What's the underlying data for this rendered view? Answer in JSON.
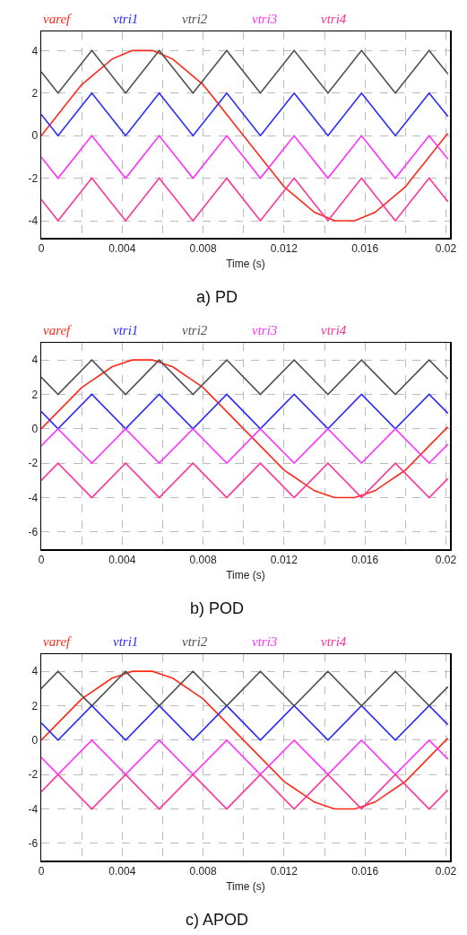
{
  "chart_data": [
    {
      "type": "line",
      "xlabel": "Time (s)",
      "annotations": [
        "a) PD"
      ],
      "legend": "top",
      "grid": true,
      "xlim": [
        0,
        0.0202
      ],
      "ylim": [
        -4.8,
        4.9
      ],
      "xticks": [
        0,
        {
          "value": 0.002,
          "label": null
        },
        0.004,
        {
          "value": 0.006,
          "label": null
        },
        0.008,
        {
          "value": 0.01,
          "label": null
        },
        0.012,
        {
          "value": 0.014,
          "label": null
        },
        0.016,
        {
          "value": 0.018,
          "label": null
        },
        0.02
      ],
      "yticks": [
        -4,
        -2,
        0,
        2,
        4
      ],
      "series": [
        {
          "name": "varef",
          "color": "#ff2a1a",
          "x": [
            0,
            0.0005,
            0.001,
            0.0015,
            0.002,
            0.0025,
            0.003,
            0.0035,
            0.004,
            0.0045,
            0.005,
            0.0055,
            0.006,
            0.0065,
            0.007,
            0.0075,
            0.008,
            0.0085,
            0.009,
            0.0095,
            0.01,
            0.0105,
            0.011,
            0.0115,
            0.012,
            0.0125,
            0.013,
            0.0135,
            0.014,
            0.0145,
            0.015,
            0.0155,
            0.016,
            0.0165,
            0.017,
            0.0175,
            0.018,
            0.0185,
            0.019,
            0.0195,
            0.02,
            0.0201
          ],
          "values": [
            0,
            0.6,
            1.2,
            1.8,
            2.4,
            2.8,
            3.2,
            3.6,
            3.8,
            4,
            4,
            4,
            3.8,
            3.6,
            3.2,
            2.8,
            2.4,
            1.8,
            1.2,
            0.6,
            0,
            -0.6,
            -1.2,
            -1.8,
            -2.4,
            -2.8,
            -3.2,
            -3.6,
            -3.8,
            -4,
            -4,
            -4,
            -3.8,
            -3.6,
            -3.2,
            -2.8,
            -2.4,
            -1.8,
            -1.2,
            -0.6,
            0,
            0.1
          ]
        },
        {
          "name": "vtri1",
          "color": "#2a2aff",
          "x": [
            0,
            0.00083,
            0.0025,
            0.00417,
            0.00583,
            0.0075,
            0.00917,
            0.01083,
            0.0125,
            0.01417,
            0.01583,
            0.0175,
            0.01917,
            0.0201
          ],
          "values": [
            1,
            0,
            2,
            0,
            2,
            0,
            2,
            0,
            2,
            0,
            2,
            0,
            2,
            0.9
          ]
        },
        {
          "name": "vtri2",
          "color": "#505050",
          "x": [
            0,
            0.00083,
            0.0025,
            0.00417,
            0.00583,
            0.0075,
            0.00917,
            0.01083,
            0.0125,
            0.01417,
            0.01583,
            0.0175,
            0.01917,
            0.0201
          ],
          "values": [
            3,
            2,
            4,
            2,
            4,
            2,
            4,
            2,
            4,
            2,
            4,
            2,
            4,
            2.9
          ]
        },
        {
          "name": "vtri3",
          "color": "#ff33ff",
          "x": [
            0,
            0.00083,
            0.0025,
            0.00417,
            0.00583,
            0.0075,
            0.00917,
            0.01083,
            0.0125,
            0.01417,
            0.01583,
            0.0175,
            0.01917,
            0.0201
          ],
          "values": [
            -1,
            -2,
            0,
            -2,
            0,
            -2,
            0,
            -2,
            0,
            -2,
            0,
            -2,
            0,
            -1.1
          ]
        },
        {
          "name": "vtri4",
          "color": "#ff3399",
          "x": [
            0,
            0.00083,
            0.0025,
            0.00417,
            0.00583,
            0.0075,
            0.00917,
            0.01083,
            0.0125,
            0.01417,
            0.01583,
            0.0175,
            0.01917,
            0.0201
          ],
          "values": [
            -3,
            -4,
            -2,
            -4,
            -2,
            -4,
            -2,
            -4,
            -2,
            -4,
            -2,
            -4,
            -2,
            -3.1
          ]
        }
      ]
    },
    {
      "type": "line",
      "xlabel": "Time (s)",
      "annotations": [
        "b) POD"
      ],
      "legend": "top",
      "grid": true,
      "xlim": [
        0,
        0.0202
      ],
      "ylim": [
        -7,
        5
      ],
      "xticks": [
        0,
        {
          "value": 0.002,
          "label": null
        },
        0.004,
        {
          "value": 0.006,
          "label": null
        },
        0.008,
        {
          "value": 0.01,
          "label": null
        },
        0.012,
        {
          "value": 0.014,
          "label": null
        },
        0.016,
        {
          "value": 0.018,
          "label": null
        },
        0.02
      ],
      "yticks": [
        -6,
        -4,
        -2,
        0,
        2,
        4
      ],
      "series": [
        {
          "name": "varef",
          "color": "#ff2a1a",
          "x": [
            0,
            0.0005,
            0.001,
            0.0015,
            0.002,
            0.0025,
            0.003,
            0.0035,
            0.004,
            0.0045,
            0.005,
            0.0055,
            0.006,
            0.0065,
            0.007,
            0.0075,
            0.008,
            0.0085,
            0.009,
            0.0095,
            0.01,
            0.0105,
            0.011,
            0.0115,
            0.012,
            0.0125,
            0.013,
            0.0135,
            0.014,
            0.0145,
            0.015,
            0.0155,
            0.016,
            0.0165,
            0.017,
            0.0175,
            0.018,
            0.0185,
            0.019,
            0.0195,
            0.02,
            0.0201
          ],
          "values": [
            0,
            0.6,
            1.2,
            1.8,
            2.4,
            2.8,
            3.2,
            3.6,
            3.8,
            4,
            4,
            4,
            3.8,
            3.6,
            3.2,
            2.8,
            2.4,
            1.8,
            1.2,
            0.6,
            0,
            -0.6,
            -1.2,
            -1.8,
            -2.4,
            -2.8,
            -3.2,
            -3.6,
            -3.8,
            -4,
            -4,
            -4,
            -3.8,
            -3.6,
            -3.2,
            -2.8,
            -2.4,
            -1.8,
            -1.2,
            -0.6,
            0,
            0.1
          ]
        },
        {
          "name": "vtri1",
          "color": "#2a2aff",
          "x": [
            0,
            0.00083,
            0.0025,
            0.00417,
            0.00583,
            0.0075,
            0.00917,
            0.01083,
            0.0125,
            0.01417,
            0.01583,
            0.0175,
            0.01917,
            0.0201
          ],
          "values": [
            1,
            0,
            2,
            0,
            2,
            0,
            2,
            0,
            2,
            0,
            2,
            0,
            2,
            0.9
          ]
        },
        {
          "name": "vtri2",
          "color": "#505050",
          "x": [
            0,
            0.00083,
            0.0025,
            0.00417,
            0.00583,
            0.0075,
            0.00917,
            0.01083,
            0.0125,
            0.01417,
            0.01583,
            0.0175,
            0.01917,
            0.0201
          ],
          "values": [
            3,
            2,
            4,
            2,
            4,
            2,
            4,
            2,
            4,
            2,
            4,
            2,
            4,
            2.9
          ]
        },
        {
          "name": "vtri3",
          "color": "#ff33ff",
          "x": [
            0,
            0.00083,
            0.0025,
            0.00417,
            0.00583,
            0.0075,
            0.00917,
            0.01083,
            0.0125,
            0.01417,
            0.01583,
            0.0175,
            0.01917,
            0.0201
          ],
          "values": [
            -1,
            0,
            -2,
            0,
            -2,
            0,
            -2,
            0,
            -2,
            0,
            -2,
            0,
            -2,
            -0.9
          ]
        },
        {
          "name": "vtri4",
          "color": "#ff3399",
          "x": [
            0,
            0.00083,
            0.0025,
            0.00417,
            0.00583,
            0.0075,
            0.00917,
            0.01083,
            0.0125,
            0.01417,
            0.01583,
            0.0175,
            0.01917,
            0.0201
          ],
          "values": [
            -3,
            -2,
            -4,
            -2,
            -4,
            -2,
            -4,
            -2,
            -4,
            -2,
            -4,
            -2,
            -4,
            -2.9
          ]
        }
      ]
    },
    {
      "type": "line",
      "xlabel": "Time (s)",
      "annotations": [
        "c) APOD"
      ],
      "legend": "top",
      "grid": true,
      "xlim": [
        0,
        0.0202
      ],
      "ylim": [
        -7,
        5
      ],
      "xticks": [
        0,
        {
          "value": 0.002,
          "label": null
        },
        0.004,
        {
          "value": 0.006,
          "label": null
        },
        0.008,
        {
          "value": 0.01,
          "label": null
        },
        0.012,
        {
          "value": 0.014,
          "label": null
        },
        0.016,
        {
          "value": 0.018,
          "label": null
        },
        0.02
      ],
      "yticks": [
        -6,
        -4,
        -2,
        0,
        2,
        4
      ],
      "series": [
        {
          "name": "varef",
          "color": "#ff2a1a",
          "x": [
            0,
            0.0005,
            0.001,
            0.0015,
            0.002,
            0.0025,
            0.003,
            0.0035,
            0.004,
            0.0045,
            0.005,
            0.0055,
            0.006,
            0.0065,
            0.007,
            0.0075,
            0.008,
            0.0085,
            0.009,
            0.0095,
            0.01,
            0.0105,
            0.011,
            0.0115,
            0.012,
            0.0125,
            0.013,
            0.0135,
            0.014,
            0.0145,
            0.015,
            0.0155,
            0.016,
            0.0165,
            0.017,
            0.0175,
            0.018,
            0.0185,
            0.019,
            0.0195,
            0.02,
            0.0201
          ],
          "values": [
            0,
            0.6,
            1.2,
            1.8,
            2.4,
            2.8,
            3.2,
            3.6,
            3.8,
            4,
            4,
            4,
            3.8,
            3.6,
            3.2,
            2.8,
            2.4,
            1.8,
            1.2,
            0.6,
            0,
            -0.6,
            -1.2,
            -1.8,
            -2.4,
            -2.8,
            -3.2,
            -3.6,
            -3.8,
            -4,
            -4,
            -4,
            -3.8,
            -3.6,
            -3.2,
            -2.8,
            -2.4,
            -1.8,
            -1.2,
            -0.6,
            0,
            0.1
          ]
        },
        {
          "name": "vtri1",
          "color": "#2a2aff",
          "x": [
            0,
            0.00083,
            0.0025,
            0.00417,
            0.00583,
            0.0075,
            0.00917,
            0.01083,
            0.0125,
            0.01417,
            0.01583,
            0.0175,
            0.01917,
            0.0201
          ],
          "values": [
            1,
            0,
            2,
            0,
            2,
            0,
            2,
            0,
            2,
            0,
            2,
            0,
            2,
            0.9
          ]
        },
        {
          "name": "vtri2",
          "color": "#505050",
          "x": [
            0,
            0.00083,
            0.0025,
            0.00417,
            0.00583,
            0.0075,
            0.00917,
            0.01083,
            0.0125,
            0.01417,
            0.01583,
            0.0175,
            0.01917,
            0.0201
          ],
          "values": [
            3,
            4,
            2,
            4,
            2,
            4,
            2,
            4,
            2,
            4,
            2,
            4,
            2,
            3.1
          ]
        },
        {
          "name": "vtri3",
          "color": "#ff33ff",
          "x": [
            0,
            0.00083,
            0.0025,
            0.00417,
            0.00583,
            0.0075,
            0.00917,
            0.01083,
            0.0125,
            0.01417,
            0.01583,
            0.0175,
            0.01917,
            0.0201
          ],
          "values": [
            -1,
            -2,
            0,
            -2,
            0,
            -2,
            0,
            -2,
            0,
            -2,
            0,
            -2,
            0,
            -1.1
          ]
        },
        {
          "name": "vtri4",
          "color": "#ff3399",
          "x": [
            0,
            0.00083,
            0.0025,
            0.00417,
            0.00583,
            0.0075,
            0.00917,
            0.01083,
            0.0125,
            0.01417,
            0.01583,
            0.0175,
            0.01917,
            0.0201
          ],
          "values": [
            -3,
            -2,
            -4,
            -2,
            -4,
            -2,
            -4,
            -2,
            -4,
            -2,
            -4,
            -2,
            -4,
            -2.9
          ]
        }
      ]
    }
  ]
}
